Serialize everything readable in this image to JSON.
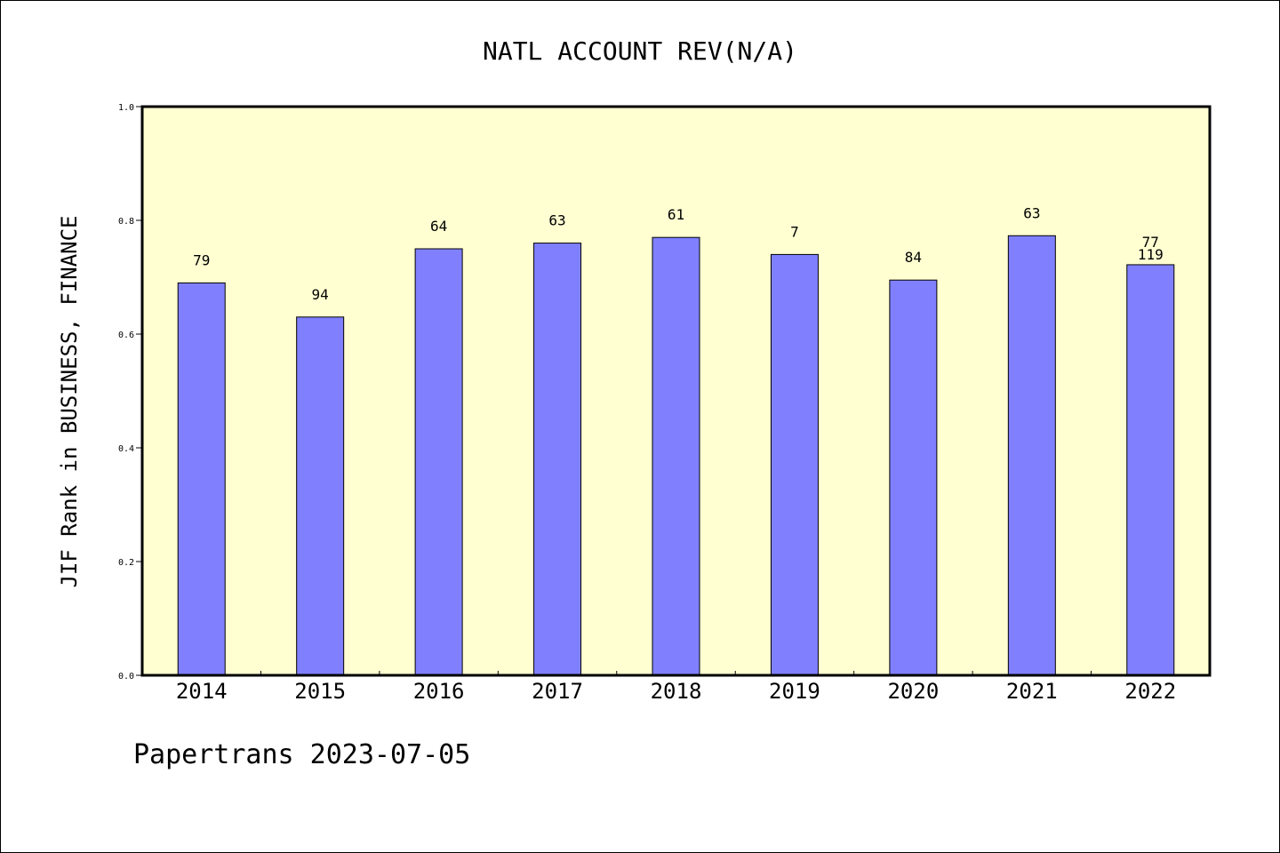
{
  "colors": {
    "plot_background": "#ffffd2",
    "bar_fill": "#8080ff",
    "bar_stroke": "#000000",
    "axis": "#000000"
  },
  "footer": {
    "text": "Papertrans 2023-07-05"
  },
  "chart_data": {
    "type": "bar",
    "title": "NATL ACCOUNT REV(N/A)",
    "xlabel": "",
    "ylabel": "JIF Rank in BUSINESS, FINANCE",
    "categories": [
      "2014",
      "2015",
      "2016",
      "2017",
      "2018",
      "2019",
      "2020",
      "2021",
      "2022"
    ],
    "values": [
      0.69,
      0.63,
      0.75,
      0.76,
      0.77,
      0.74,
      0.695,
      0.773,
      0.722
    ],
    "bar_labels": [
      [
        "79"
      ],
      [
        "94"
      ],
      [
        "64"
      ],
      [
        "63"
      ],
      [
        "61"
      ],
      [
        "7"
      ],
      [
        "84"
      ],
      [
        "63"
      ],
      [
        "77",
        "119"
      ]
    ],
    "ylim": [
      0.0,
      1.0
    ],
    "yticks": [
      "0.0",
      "0.2",
      "0.4",
      "0.6",
      "0.8",
      "1.0"
    ],
    "grid": false,
    "legend": "none"
  }
}
